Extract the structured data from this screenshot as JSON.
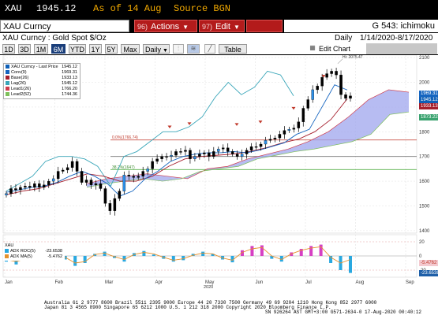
{
  "header": {
    "ticker": "XAU",
    "price": "1945.12",
    "asof_label": "As of 14 Aug",
    "source_label": "Source BGN"
  },
  "command": {
    "security": "XAU Curncy",
    "actions_num": "96)",
    "actions_label": "Actions",
    "edit_num": "97)",
    "edit_label": "Edit",
    "chart_name": "G 543: ichimoku"
  },
  "subheader": {
    "description": "XAU Curncy : Gold Spot  $/Oz",
    "frequency": "Daily",
    "date_range": "1/14/2020-8/17/2020"
  },
  "tabs": {
    "periods": [
      "1D",
      "3D",
      "1M",
      "6M",
      "YTD",
      "1Y",
      "5Y",
      "Max"
    ],
    "active": "6M",
    "frequency_select": "Daily",
    "table_label": "Table",
    "edit_chart_label": "Edit Chart"
  },
  "legend": {
    "title": "XAU Curncy - Last Price",
    "items": [
      {
        "label": "Conv(9)",
        "value": "1969.31",
        "color": "#1565c0"
      },
      {
        "label": "Base(26)",
        "value": "1933.13",
        "color": "#a51e2c"
      },
      {
        "label": "Lag(26)",
        "value": "1945.12",
        "color": "#3aa6b9"
      },
      {
        "label": "Lead1(26)",
        "value": "1766.20",
        "color": "#cf3b4b"
      },
      {
        "label": "Lead2(52)",
        "value": "1744.36",
        "color": "#7dbf5a"
      }
    ],
    "title_value": "1945.12",
    "title_color": "#0d5fb7"
  },
  "annotations": {
    "hi_label": "Hi: 2075.47",
    "level_upper": "0.0%(1766.74)",
    "level_lower": "38.2%(1647)"
  },
  "price_tags": [
    {
      "text": "1969.31",
      "color": "#1565c0"
    },
    {
      "text": "1945.12",
      "color": "#0d5fb7"
    },
    {
      "text": "1933.13",
      "color": "#a51e2c"
    },
    {
      "text": "1873.22",
      "color": "#3aa36f"
    }
  ],
  "adx": {
    "title": "XAU",
    "roc_label": "ADX ROC(5)",
    "roc_value": "-23.6538",
    "mas_label": "ADX MA(5)",
    "mas_value": "-5.4762",
    "tag_upper": "-5.4762",
    "tag_lower": "-23.6538"
  },
  "x_axis": {
    "months": [
      "Jan",
      "Feb",
      "Mar",
      "Apr",
      "May",
      "Jun",
      "Jul",
      "Aug",
      "Sep"
    ],
    "year": "2020"
  },
  "footer": {
    "line1": "Australia 61 2 9777 8600  Brazil 5511 2395 9000  Europe 44 20 7330 7500  Germany 49 69 9204 1210  Hong Kong 852 2977 6000",
    "line2": "Japan 81 3 4565 8900        Singapore 65 6212 1000       U.S. 1 212 318 2000        Copyright 2020 Bloomberg Finance L.P.",
    "line3": "SN 926264 AST  GMT+3:00 G571-2634-0 17-Aug-2020 00:40:12"
  },
  "chart_data": {
    "type": "line",
    "title": "",
    "price_axis": {
      "ylim": [
        1390,
        2110
      ],
      "ticks": [
        1400,
        1500,
        1600,
        1700,
        1800,
        1900,
        2000,
        2100
      ]
    },
    "adx_axis": {
      "ylim": [
        -30,
        30
      ],
      "ticks": [
        20,
        0,
        -20
      ]
    },
    "x": [
      "2020-01",
      "2020-02",
      "2020-03",
      "2020-04",
      "2020-05",
      "2020-06",
      "2020-07",
      "2020-08",
      "2020-09"
    ],
    "horizontal_levels": [
      {
        "name": "0.0%",
        "value": 1766.74,
        "color": "#c0392b"
      },
      {
        "name": "38.2%",
        "value": 1647,
        "color": "#59b14a"
      },
      {
        "name": "",
        "value": 1700,
        "color": "#777777"
      }
    ],
    "series": [
      {
        "name": "Last Price",
        "type": "candles",
        "approx_daily_close": [
          1550,
          1570,
          1565,
          1575,
          1580,
          1575,
          1590,
          1575,
          1585,
          1600,
          1610,
          1640,
          1645,
          1655,
          1680,
          1640,
          1595,
          1605,
          1585,
          1590,
          1570,
          1510,
          1480,
          1530,
          1560,
          1625,
          1620,
          1615,
          1620,
          1640,
          1650,
          1680,
          1690,
          1700,
          1700,
          1705,
          1720,
          1720,
          1725,
          1690,
          1700,
          1710,
          1715,
          1700,
          1720,
          1730,
          1735,
          1720,
          1710,
          1700,
          1710,
          1725,
          1740,
          1740,
          1750,
          1765,
          1770,
          1775,
          1790,
          1805,
          1810,
          1815,
          1840,
          1895,
          1930,
          1970,
          1985,
          2020,
          2035,
          2045,
          2030,
          1950,
          1935,
          1945
        ]
      },
      {
        "name": "Conv(9)",
        "approx_values": [
          1555,
          1565,
          1575,
          1580,
          1595,
          1620,
          1640,
          1620,
          1590,
          1540,
          1560,
          1610,
          1640,
          1680,
          1700,
          1710,
          1715,
          1715,
          1720,
          1715,
          1725,
          1740,
          1755,
          1790,
          1810,
          1900,
          1990,
          1969
        ]
      },
      {
        "name": "Base(26)",
        "approx_values": [
          1545,
          1560,
          1570,
          1590,
          1610,
          1630,
          1620,
          1600,
          1600,
          1620,
          1660,
          1690,
          1700,
          1705,
          1710,
          1720,
          1735,
          1755,
          1770,
          1800,
          1850,
          1933
        ]
      },
      {
        "name": "Lag(26)",
        "approx_values": [
          1560,
          1590,
          1620,
          1680,
          1700,
          1700,
          1690,
          1660,
          1580,
          1700,
          1720,
          1760,
          1800,
          1800,
          1820,
          1860,
          1940,
          2000,
          1950,
          1980,
          2045,
          2030,
          1945
        ]
      },
      {
        "name": "Lead1(26)",
        "approx_values": [
          1590,
          1610,
          1620,
          1630,
          1620,
          1610,
          1650,
          1660,
          1690,
          1710,
          1730,
          1760,
          1800,
          1860,
          1930,
          1970,
          1960
        ]
      },
      {
        "name": "Lead2(52)",
        "approx_values": [
          1575,
          1590,
          1600,
          1610,
          1600,
          1610,
          1640,
          1650,
          1660,
          1690,
          1705,
          1720,
          1730,
          1745,
          1760,
          1790,
          1870,
          1880
        ]
      },
      {
        "name": "ADX ROC(5)",
        "type": "histogram",
        "approx_values": [
          -8,
          -12,
          -6,
          5,
          9,
          12,
          -5,
          -14,
          -10,
          3,
          6,
          -3,
          -8,
          4,
          7,
          2,
          -4,
          -8,
          -6,
          3,
          6,
          3,
          -5,
          -9,
          8,
          14,
          15,
          -4,
          -8,
          5,
          10,
          14,
          16,
          -10,
          -20,
          -24
        ]
      },
      {
        "name": "ADX MA(5)",
        "approx_values": [
          -5,
          -8,
          -4,
          3,
          7,
          9,
          -2,
          -10,
          -8,
          2,
          4,
          -1,
          -5,
          2,
          5,
          3,
          -2,
          -6,
          -4,
          1,
          4,
          3,
          -3,
          -6,
          5,
          10,
          12,
          0,
          -5,
          3,
          8,
          11,
          13,
          -2,
          -10,
          -5
        ]
      }
    ]
  }
}
